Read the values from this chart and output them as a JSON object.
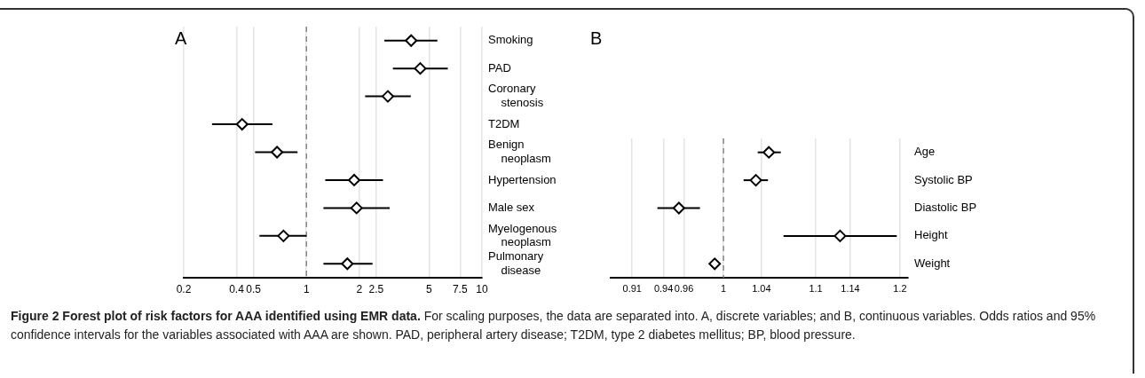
{
  "chart_data": [
    {
      "type": "scatter",
      "orientation": "horizontal",
      "title": "A",
      "categories": [
        "Smoking",
        "PAD",
        "Coronary stenosis",
        "T2DM",
        "Benign neoplasm",
        "Hypertension",
        "Male sex",
        "Myelogenous neoplasm",
        "Pulmonary disease"
      ],
      "values": [
        3.95,
        4.45,
        2.91,
        0.43,
        0.68,
        1.87,
        1.93,
        0.74,
        1.71
      ],
      "errors": [
        [
          2.78,
          5.57
        ],
        [
          3.11,
          6.39
        ],
        [
          2.16,
          3.93
        ],
        [
          0.29,
          0.64
        ],
        [
          0.51,
          0.89
        ],
        [
          1.28,
          2.73
        ],
        [
          1.25,
          2.98
        ],
        [
          0.54,
          1.0
        ],
        [
          1.25,
          2.38
        ]
      ],
      "color": "#000000",
      "marker": "diamond",
      "log": "x",
      "xlim": [
        0.2,
        10
      ],
      "xticks": [
        0.2,
        0.4,
        0.5,
        1,
        2,
        2.5,
        5,
        7.5,
        10
      ],
      "grid": "x",
      "ref_lines": [
        {
          "axis": "x",
          "value": 1,
          "line_style": "dashed",
          "color": "#888888"
        }
      ],
      "annotations": [
        "Figure 2 Forest plot of risk factors for AAA identified using EMR data.",
        "For scaling purposes, the data are separated into. A, discrete variables; and B, continuous variables. Odds ratios and 95% confidence intervals for the variables associated with AAA are shown. PAD, peripheral artery disease; T2DM, type 2 diabetes mellitus; BP, blood pressure."
      ]
    },
    {
      "type": "scatter",
      "orientation": "horizontal",
      "title": "B",
      "categories": [
        "Age",
        "Systolic BP",
        "Diastolic BP",
        "Height",
        "Weight"
      ],
      "values": [
        1.048,
        1.034,
        0.955,
        1.128,
        0.991
      ],
      "errors": [
        [
          1.036,
          1.061
        ],
        [
          1.021,
          1.047
        ],
        [
          0.934,
          0.976
        ],
        [
          1.064,
          1.196
        ],
        [
          0.989,
          0.993
        ]
      ],
      "color": "#000000",
      "marker": "diamond",
      "log": "x",
      "xlim": [
        0.89,
        1.21
      ],
      "xticks": [
        0.91,
        0.94,
        0.96,
        1,
        1.04,
        1.1,
        1.14,
        1.2
      ],
      "grid": "x",
      "ref_lines": [
        {
          "axis": "x",
          "value": 1,
          "line_style": "dashed",
          "color": "#888888"
        }
      ]
    }
  ]
}
